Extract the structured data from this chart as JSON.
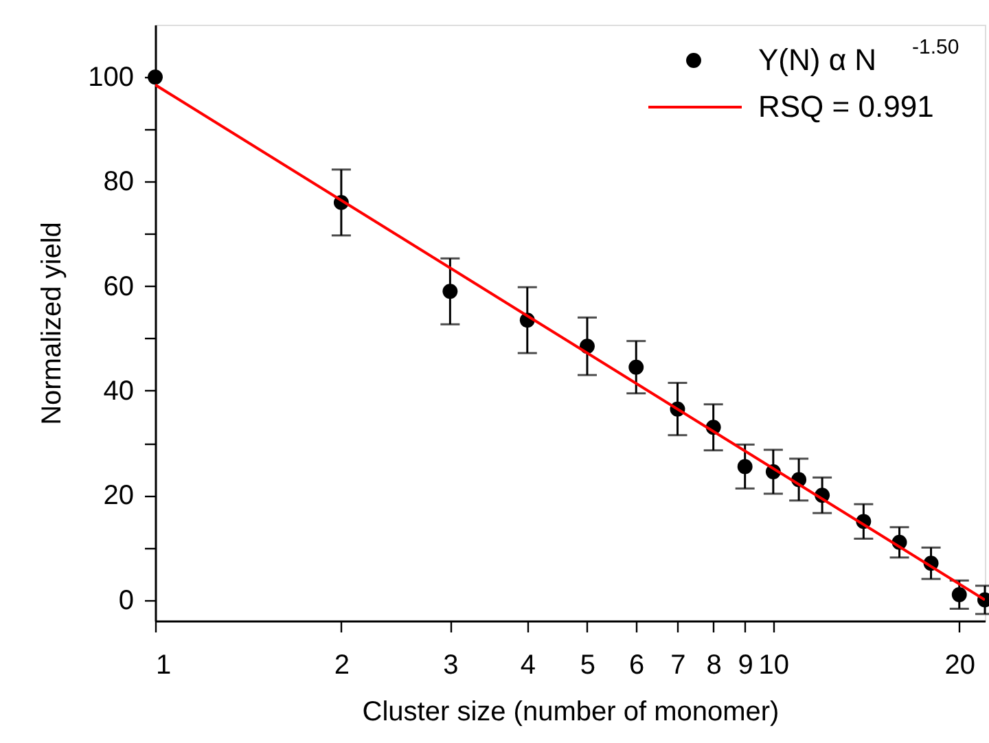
{
  "chart_data": {
    "type": "scatter",
    "xlabel": "Cluster size (number of monomer)",
    "ylabel": "Normalized yield",
    "log": "x",
    "xlim": [
      1,
      22
    ],
    "xticks": [
      1,
      2,
      3,
      4,
      5,
      6,
      7,
      8,
      9,
      10,
      20
    ],
    "ylim": [
      -4,
      110
    ],
    "yticks": [
      0,
      {
        "value": 10,
        "label": null
      },
      20,
      {
        "value": 30,
        "label": null
      },
      40,
      {
        "value": 50,
        "label": null
      },
      60,
      {
        "value": 70,
        "label": null
      },
      80,
      {
        "value": 90,
        "label": null
      },
      100
    ],
    "grid": false,
    "legend": "top right",
    "series": [
      {
        "name": "Y(N) α N$^{-1.50}$",
        "marker": "circle",
        "color": "#000000",
        "x": [
          1,
          2,
          3,
          4,
          5,
          6,
          7,
          8,
          9,
          10,
          11,
          12,
          14,
          16,
          18,
          20,
          22
        ],
        "values": [
          100,
          76,
          59,
          53.5,
          48.5,
          44.5,
          36.5,
          33,
          25.5,
          24.5,
          23,
          20,
          15,
          11,
          7,
          1,
          0
        ],
        "errors": [
          null,
          6.3,
          6.3,
          6.3,
          5.5,
          5,
          5,
          4.4,
          4.2,
          4.2,
          4,
          3.4,
          3.3,
          2.9,
          3,
          2.7,
          2.7
        ]
      },
      {
        "name": "RSQ = 0.991",
        "type": "line",
        "marker": "none",
        "color": "#ff0000",
        "line_style": "solid",
        "x": [
          1,
          22
        ],
        "values": [
          98.5,
          0
        ]
      }
    ]
  }
}
